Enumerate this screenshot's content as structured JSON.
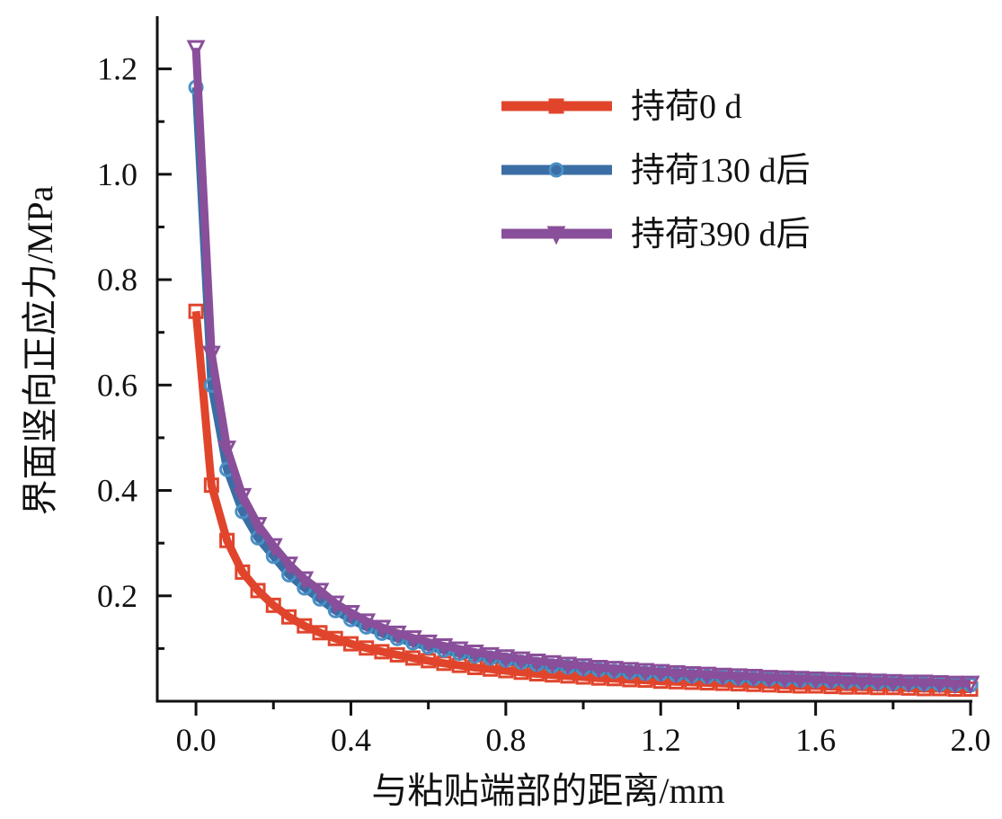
{
  "chart_data": {
    "type": "line",
    "title": "",
    "xlabel": "与粘贴端部的距离/mm",
    "ylabel": "界面竖向正应力/MPa",
    "xlim": [
      -0.1,
      2.0
    ],
    "ylim": [
      0,
      1.3
    ],
    "x_ticks": [
      0.0,
      0.4,
      0.8,
      1.2,
      1.6,
      2.0
    ],
    "x_tick_labels": [
      "0.0",
      "0.4",
      "0.8",
      "1.2",
      "1.6",
      "2.0"
    ],
    "y_ticks": [
      0.2,
      0.4,
      0.6,
      0.8,
      1.0,
      1.2
    ],
    "y_tick_labels": [
      "0.2",
      "0.4",
      "0.6",
      "0.8",
      "1.0",
      "1.2"
    ],
    "grid": false,
    "legend_position": "top-right",
    "x": [
      0,
      0.04,
      0.08,
      0.12,
      0.16,
      0.2,
      0.24,
      0.28,
      0.32,
      0.36,
      0.4,
      0.44,
      0.48,
      0.52,
      0.56,
      0.6,
      0.64,
      0.68,
      0.72,
      0.76,
      0.8,
      0.84,
      0.88,
      0.92,
      0.96,
      1.0,
      1.04,
      1.08,
      1.12,
      1.16,
      1.2,
      1.24,
      1.28,
      1.32,
      1.36,
      1.4,
      1.44,
      1.48,
      1.52,
      1.56,
      1.6,
      1.64,
      1.68,
      1.72,
      1.76,
      1.8,
      1.84,
      1.88,
      1.92,
      1.96,
      2.0
    ],
    "series": [
      {
        "name": "持荷0 d",
        "color": "#e0452c",
        "marker": "square",
        "values": [
          0.74,
          0.41,
          0.305,
          0.245,
          0.21,
          0.182,
          0.16,
          0.143,
          0.13,
          0.119,
          0.109,
          0.101,
          0.094,
          0.088,
          0.082,
          0.077,
          0.072,
          0.068,
          0.064,
          0.061,
          0.058,
          0.055,
          0.052,
          0.05,
          0.048,
          0.046,
          0.044,
          0.043,
          0.041,
          0.04,
          0.038,
          0.037,
          0.036,
          0.035,
          0.034,
          0.033,
          0.032,
          0.031,
          0.03,
          0.029,
          0.029,
          0.028,
          0.027,
          0.027,
          0.026,
          0.026,
          0.025,
          0.024,
          0.024,
          0.023,
          0.023
        ]
      },
      {
        "name": "持荷130 d后",
        "color": "#3a6ea5",
        "marker": "circle",
        "values": [
          1.165,
          0.6,
          0.44,
          0.36,
          0.31,
          0.275,
          0.24,
          0.215,
          0.194,
          0.172,
          0.155,
          0.141,
          0.129,
          0.119,
          0.111,
          0.103,
          0.097,
          0.091,
          0.086,
          0.082,
          0.078,
          0.074,
          0.07,
          0.067,
          0.065,
          0.062,
          0.06,
          0.057,
          0.055,
          0.053,
          0.052,
          0.05,
          0.048,
          0.047,
          0.046,
          0.044,
          0.043,
          0.042,
          0.041,
          0.04,
          0.039,
          0.038,
          0.037,
          0.036,
          0.035,
          0.034,
          0.034,
          0.033,
          0.032,
          0.032,
          0.031
        ]
      },
      {
        "name": "持荷390 d后",
        "color": "#8a4f9a",
        "marker": "triangle-down",
        "values": [
          1.24,
          0.66,
          0.48,
          0.39,
          0.335,
          0.295,
          0.26,
          0.232,
          0.21,
          0.186,
          0.168,
          0.152,
          0.14,
          0.129,
          0.12,
          0.112,
          0.105,
          0.099,
          0.093,
          0.088,
          0.084,
          0.08,
          0.076,
          0.073,
          0.07,
          0.067,
          0.064,
          0.062,
          0.06,
          0.058,
          0.056,
          0.054,
          0.052,
          0.051,
          0.049,
          0.048,
          0.047,
          0.045,
          0.044,
          0.043,
          0.042,
          0.041,
          0.04,
          0.039,
          0.038,
          0.037,
          0.036,
          0.036,
          0.035,
          0.034,
          0.034
        ]
      }
    ]
  }
}
